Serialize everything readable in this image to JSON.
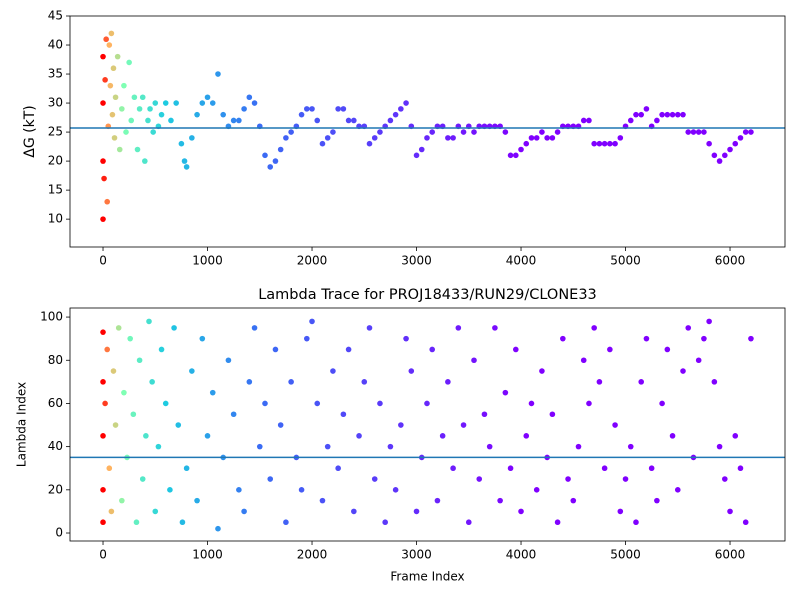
{
  "chart_data": [
    {
      "type": "scatter",
      "ylabel": "ΔG (kT)",
      "xlim": [
        -316,
        6526
      ],
      "xticks": [
        0,
        1000,
        2000,
        3000,
        4000,
        5000,
        6000
      ],
      "ylim": [
        5.2,
        45
      ],
      "yticks": [
        10,
        15,
        20,
        25,
        30,
        35,
        40,
        45
      ],
      "hline": 25.7,
      "hline_color": "#1f77b4",
      "color_stops": [
        [
          0,
          "#ff0000"
        ],
        [
          60,
          "#ffb360"
        ],
        [
          200,
          "#80ffb4"
        ],
        [
          600,
          "#1ecbe1"
        ],
        [
          1500,
          "#3a6cf4"
        ],
        [
          4000,
          "#8000ff"
        ]
      ],
      "x": [
        0,
        0,
        0,
        0,
        10,
        20,
        30,
        40,
        50,
        60,
        70,
        80,
        90,
        100,
        110,
        120,
        140,
        160,
        180,
        200,
        220,
        250,
        270,
        300,
        330,
        350,
        380,
        400,
        430,
        450,
        480,
        500,
        530,
        560,
        600,
        650,
        700,
        750,
        780,
        800,
        850,
        900,
        950,
        1000,
        1050,
        1100,
        1150,
        1200,
        1250,
        1300,
        1350,
        1400,
        1450,
        1500,
        1550,
        1600,
        1650,
        1700,
        1750,
        1800,
        1850,
        1900,
        1950,
        2000,
        2050,
        2100,
        2150,
        2200,
        2250,
        2300,
        2350,
        2400,
        2450,
        2500,
        2550,
        2600,
        2650,
        2700,
        2750,
        2800,
        2850,
        2900,
        2950,
        3000,
        3050,
        3100,
        3150,
        3200,
        3250,
        3300,
        3350,
        3400,
        3450,
        3500,
        3550,
        3600,
        3650,
        3700,
        3750,
        3800,
        3850,
        3900,
        3950,
        4000,
        4050,
        4100,
        4150,
        4200,
        4250,
        4300,
        4350,
        4400,
        4450,
        4500,
        4550,
        4600,
        4650,
        4700,
        4750,
        4800,
        4850,
        4900,
        4950,
        5000,
        5050,
        5100,
        5150,
        5200,
        5250,
        5300,
        5350,
        5400,
        5450,
        5500,
        5550,
        5600,
        5650,
        5700,
        5750,
        5800,
        5850,
        5900,
        5950,
        6000,
        6050,
        6100,
        6150,
        6200
      ],
      "y": [
        10,
        20,
        30,
        38,
        17,
        34,
        41,
        13,
        26,
        40,
        33,
        42,
        28,
        36,
        24,
        31,
        38,
        22,
        29,
        33,
        25,
        37,
        27,
        31,
        22,
        29,
        31,
        20,
        27,
        29,
        25,
        30,
        26,
        28,
        30,
        27,
        30,
        23,
        20,
        19,
        24,
        28,
        30,
        31,
        30,
        35,
        28,
        26,
        27,
        27,
        29,
        31,
        30,
        26,
        21,
        19,
        20,
        22,
        24,
        25,
        26,
        28,
        29,
        29,
        27,
        23,
        24,
        25,
        29,
        29,
        27,
        27,
        26,
        26,
        23,
        24,
        25,
        26,
        27,
        28,
        29,
        30,
        26,
        21,
        22,
        24,
        25,
        26,
        26,
        24,
        24,
        26,
        25,
        26,
        25,
        26,
        26,
        26,
        26,
        26,
        25,
        21,
        21,
        22,
        23,
        24,
        24,
        25,
        24,
        24,
        25,
        26,
        26,
        26,
        26,
        27,
        27,
        23,
        23,
        23,
        23,
        23,
        24,
        26,
        27,
        28,
        28,
        29,
        26,
        27,
        28,
        28,
        28,
        28,
        28,
        25,
        25,
        25,
        25,
        23,
        21,
        20,
        21,
        22,
        23,
        24,
        25,
        25
      ]
    },
    {
      "type": "scatter",
      "title": "Lambda Trace for PROJ18433/RUN29/CLONE33",
      "xlabel": "Frame Index",
      "ylabel": "Lambda Index",
      "xlim": [
        -316,
        6526
      ],
      "xticks": [
        0,
        1000,
        2000,
        3000,
        4000,
        5000,
        6000
      ],
      "ylim": [
        -3.7,
        104.2
      ],
      "yticks": [
        0,
        20,
        40,
        60,
        80,
        100
      ],
      "hline": 35,
      "hline_color": "#1f77b4",
      "color_stops": [
        [
          0,
          "#ff0000"
        ],
        [
          60,
          "#ffb360"
        ],
        [
          200,
          "#80ffb4"
        ],
        [
          600,
          "#1ecbe1"
        ],
        [
          1500,
          "#3a6cf4"
        ],
        [
          4000,
          "#8000ff"
        ]
      ],
      "x": [
        0,
        0,
        0,
        0,
        0,
        20,
        40,
        60,
        80,
        100,
        120,
        150,
        180,
        200,
        230,
        260,
        290,
        320,
        350,
        380,
        410,
        440,
        470,
        500,
        530,
        560,
        600,
        640,
        680,
        720,
        760,
        800,
        850,
        900,
        950,
        1000,
        1050,
        1100,
        1150,
        1200,
        1250,
        1300,
        1350,
        1400,
        1450,
        1500,
        1550,
        1600,
        1650,
        1700,
        1750,
        1800,
        1850,
        1900,
        1950,
        2000,
        2050,
        2100,
        2150,
        2200,
        2250,
        2300,
        2350,
        2400,
        2450,
        2500,
        2550,
        2600,
        2650,
        2700,
        2750,
        2800,
        2850,
        2900,
        2950,
        3000,
        3050,
        3100,
        3150,
        3200,
        3250,
        3300,
        3350,
        3400,
        3450,
        3500,
        3550,
        3600,
        3650,
        3700,
        3750,
        3800,
        3850,
        3900,
        3950,
        4000,
        4050,
        4100,
        4150,
        4200,
        4250,
        4300,
        4350,
        4400,
        4450,
        4500,
        4550,
        4600,
        4650,
        4700,
        4750,
        4800,
        4850,
        4900,
        4950,
        5000,
        5050,
        5100,
        5150,
        5200,
        5250,
        5300,
        5350,
        5400,
        5450,
        5500,
        5550,
        5600,
        5650,
        5700,
        5750,
        5800,
        5850,
        5900,
        5950,
        6000,
        6050,
        6100,
        6150,
        6200
      ],
      "y": [
        93,
        70,
        45,
        20,
        5,
        60,
        85,
        30,
        10,
        75,
        50,
        95,
        15,
        65,
        35,
        90,
        55,
        5,
        80,
        25,
        45,
        98,
        70,
        10,
        40,
        85,
        60,
        20,
        95,
        50,
        5,
        30,
        75,
        15,
        90,
        45,
        65,
        2,
        35,
        80,
        55,
        20,
        10,
        70,
        95,
        40,
        60,
        25,
        85,
        50,
        5,
        70,
        35,
        20,
        90,
        98,
        60,
        15,
        40,
        75,
        30,
        55,
        85,
        10,
        45,
        70,
        95,
        25,
        60,
        5,
        40,
        20,
        50,
        90,
        75,
        10,
        35,
        60,
        85,
        15,
        45,
        70,
        30,
        95,
        50,
        5,
        80,
        25,
        55,
        40,
        95,
        15,
        65,
        30,
        85,
        10,
        45,
        60,
        20,
        75,
        35,
        55,
        5,
        90,
        25,
        15,
        40,
        80,
        60,
        95,
        70,
        30,
        85,
        50,
        10,
        25,
        40,
        5,
        70,
        90,
        30,
        15,
        60,
        85,
        45,
        20,
        75,
        95,
        35,
        80,
        90,
        98,
        70,
        40,
        25,
        10,
        45,
        30,
        5,
        90
      ]
    }
  ]
}
